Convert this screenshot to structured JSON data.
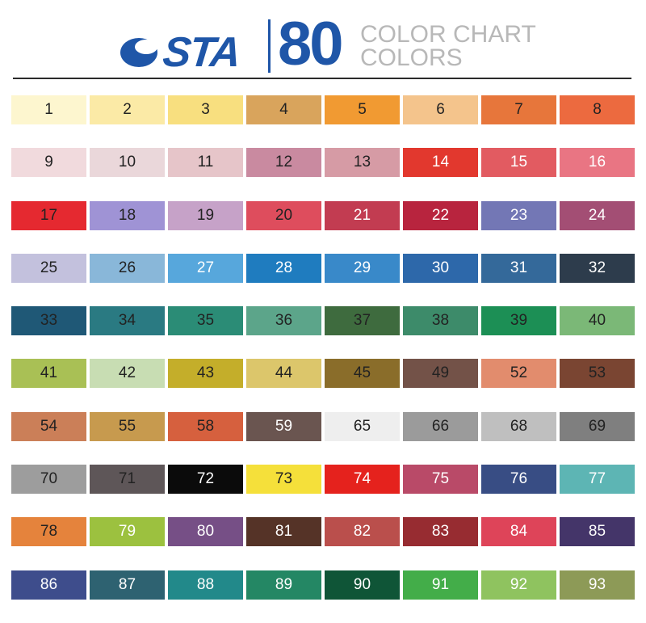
{
  "header": {
    "brand": "STA",
    "count": "80",
    "subtitle_line1": "COLOR CHART",
    "subtitle_line2": "COLORS",
    "brand_color": "#1f56a8"
  },
  "swatches": [
    {
      "label": "1",
      "color": "#fdf6cf",
      "text": "#222222"
    },
    {
      "label": "2",
      "color": "#fbeaa6",
      "text": "#222222"
    },
    {
      "label": "3",
      "color": "#f8df7f",
      "text": "#222222"
    },
    {
      "label": "4",
      "color": "#d9a45c",
      "text": "#222222"
    },
    {
      "label": "5",
      "color": "#f19a32",
      "text": "#222222"
    },
    {
      "label": "6",
      "color": "#f4c48c",
      "text": "#222222"
    },
    {
      "label": "7",
      "color": "#e7763b",
      "text": "#222222"
    },
    {
      "label": "8",
      "color": "#ec6a3f",
      "text": "#222222"
    },
    {
      "label": "9",
      "color": "#f1dadd",
      "text": "#222222"
    },
    {
      "label": "10",
      "color": "#ead7da",
      "text": "#222222"
    },
    {
      "label": "11",
      "color": "#e6c5c9",
      "text": "#222222"
    },
    {
      "label": "12",
      "color": "#c98aa0",
      "text": "#222222"
    },
    {
      "label": "13",
      "color": "#d69ba5",
      "text": "#222222"
    },
    {
      "label": "14",
      "color": "#e2382e",
      "text": "#ffffff"
    },
    {
      "label": "15",
      "color": "#e25b61",
      "text": "#ffffff"
    },
    {
      "label": "16",
      "color": "#e97583",
      "text": "#ffffff"
    },
    {
      "label": "17",
      "color": "#e52930",
      "text": "#222222"
    },
    {
      "label": "18",
      "color": "#9f93d5",
      "text": "#222222"
    },
    {
      "label": "19",
      "color": "#c6a2c8",
      "text": "#222222"
    },
    {
      "label": "20",
      "color": "#de4d5d",
      "text": "#222222"
    },
    {
      "label": "21",
      "color": "#c23c51",
      "text": "#ffffff"
    },
    {
      "label": "22",
      "color": "#b8243e",
      "text": "#ffffff"
    },
    {
      "label": "23",
      "color": "#7377b5",
      "text": "#ffffff"
    },
    {
      "label": "24",
      "color": "#a34e74",
      "text": "#ffffff"
    },
    {
      "label": "25",
      "color": "#c3c1dd",
      "text": "#222222"
    },
    {
      "label": "26",
      "color": "#89b7d9",
      "text": "#222222"
    },
    {
      "label": "27",
      "color": "#57a7dc",
      "text": "#ffffff"
    },
    {
      "label": "28",
      "color": "#1f7cbf",
      "text": "#ffffff"
    },
    {
      "label": "29",
      "color": "#3989c9",
      "text": "#ffffff"
    },
    {
      "label": "30",
      "color": "#2d68aa",
      "text": "#ffffff"
    },
    {
      "label": "31",
      "color": "#34699a",
      "text": "#ffffff"
    },
    {
      "label": "32",
      "color": "#2d3c4c",
      "text": "#ffffff"
    },
    {
      "label": "33",
      "color": "#1f5876",
      "text": "#222222"
    },
    {
      "label": "34",
      "color": "#2a7a82",
      "text": "#222222"
    },
    {
      "label": "35",
      "color": "#2b8c76",
      "text": "#222222"
    },
    {
      "label": "36",
      "color": "#5ca58a",
      "text": "#222222"
    },
    {
      "label": "37",
      "color": "#3e6b3e",
      "text": "#222222"
    },
    {
      "label": "38",
      "color": "#3d8b6a",
      "text": "#222222"
    },
    {
      "label": "39",
      "color": "#1c8f55",
      "text": "#222222"
    },
    {
      "label": "40",
      "color": "#7bb877",
      "text": "#222222"
    },
    {
      "label": "41",
      "color": "#a9c055",
      "text": "#222222"
    },
    {
      "label": "42",
      "color": "#c8ddb3",
      "text": "#222222"
    },
    {
      "label": "43",
      "color": "#c4ae2a",
      "text": "#222222"
    },
    {
      "label": "44",
      "color": "#dcc66b",
      "text": "#222222"
    },
    {
      "label": "45",
      "color": "#8a6d2a",
      "text": "#222222"
    },
    {
      "label": "49",
      "color": "#735248",
      "text": "#222222"
    },
    {
      "label": "52",
      "color": "#e28c6d",
      "text": "#222222"
    },
    {
      "label": "53",
      "color": "#7a4532",
      "text": "#222222"
    },
    {
      "label": "54",
      "color": "#cb7f58",
      "text": "#222222"
    },
    {
      "label": "55",
      "color": "#c79a4e",
      "text": "#222222"
    },
    {
      "label": "58",
      "color": "#d6603e",
      "text": "#222222"
    },
    {
      "label": "59",
      "color": "#6a5550",
      "text": "#ffffff"
    },
    {
      "label": "65",
      "color": "#eeeeee",
      "text": "#222222"
    },
    {
      "label": "66",
      "color": "#9b9b9b",
      "text": "#222222"
    },
    {
      "label": "68",
      "color": "#bfbfbf",
      "text": "#222222"
    },
    {
      "label": "69",
      "color": "#7f7f7f",
      "text": "#222222"
    },
    {
      "label": "70",
      "color": "#9d9d9d",
      "text": "#222222"
    },
    {
      "label": "71",
      "color": "#5e5658",
      "text": "#222222"
    },
    {
      "label": "72",
      "color": "#0b0b0b",
      "text": "#ffffff"
    },
    {
      "label": "73",
      "color": "#f5e03a",
      "text": "#222222"
    },
    {
      "label": "74",
      "color": "#e5221d",
      "text": "#ffffff"
    },
    {
      "label": "75",
      "color": "#b94a68",
      "text": "#ffffff"
    },
    {
      "label": "76",
      "color": "#384d84",
      "text": "#ffffff"
    },
    {
      "label": "77",
      "color": "#5db5b4",
      "text": "#ffffff"
    },
    {
      "label": "78",
      "color": "#e5833c",
      "text": "#222222"
    },
    {
      "label": "79",
      "color": "#9cc13f",
      "text": "#ffffff"
    },
    {
      "label": "80",
      "color": "#764f86",
      "text": "#ffffff"
    },
    {
      "label": "81",
      "color": "#553327",
      "text": "#ffffff"
    },
    {
      "label": "82",
      "color": "#ba4f4c",
      "text": "#ffffff"
    },
    {
      "label": "83",
      "color": "#972c31",
      "text": "#ffffff"
    },
    {
      "label": "84",
      "color": "#de4459",
      "text": "#ffffff"
    },
    {
      "label": "85",
      "color": "#443569",
      "text": "#ffffff"
    },
    {
      "label": "86",
      "color": "#3e4d8c",
      "text": "#ffffff"
    },
    {
      "label": "87",
      "color": "#2e6271",
      "text": "#ffffff"
    },
    {
      "label": "88",
      "color": "#22898a",
      "text": "#ffffff"
    },
    {
      "label": "89",
      "color": "#248764",
      "text": "#ffffff"
    },
    {
      "label": "90",
      "color": "#0f5537",
      "text": "#ffffff"
    },
    {
      "label": "91",
      "color": "#43ad49",
      "text": "#ffffff"
    },
    {
      "label": "92",
      "color": "#8fc35f",
      "text": "#ffffff"
    },
    {
      "label": "93",
      "color": "#8d9a57",
      "text": "#ffffff"
    }
  ]
}
